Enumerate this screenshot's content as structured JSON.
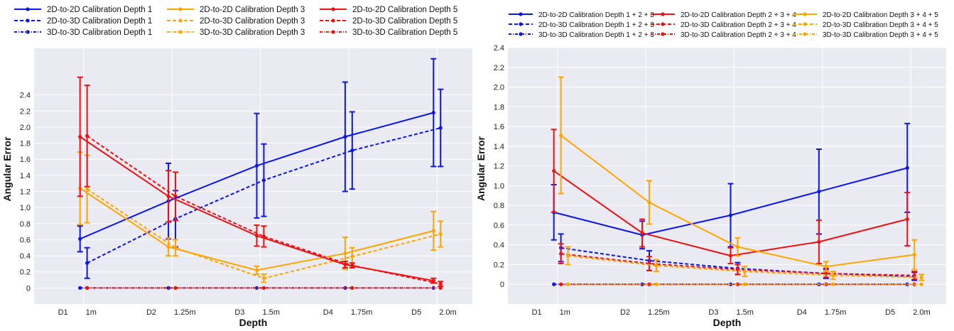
{
  "colors": {
    "blue": "#0b16ee",
    "orange": "#ffa500",
    "red": "#ee1111",
    "plot_bg": "#eaeaf2",
    "grid": "#ffffff"
  },
  "chart_data": [
    {
      "type": "line",
      "xlabel": "Depth",
      "ylabel": "Angular Error",
      "x": [
        1,
        1.25,
        1.5,
        1.75,
        2.0
      ],
      "x_tick_labels": [
        "1m",
        "1.25m",
        "1.5m",
        "1.75m",
        "2.0m"
      ],
      "depth_markers": [
        "D1",
        "D2",
        "D3",
        "D4",
        "D5"
      ],
      "y_tick_labels": [
        "0",
        "0.2",
        "0.4",
        "0.6",
        "0.8",
        "1.0",
        "1.2",
        "1.4",
        "1.6",
        "1.8",
        "2.0",
        "2.2",
        "2.4"
      ],
      "xlim": [
        0.86,
        2.1
      ],
      "ylim": [
        -0.2,
        2.98
      ],
      "grid": true,
      "legend_position": "top",
      "series": [
        {
          "name": "2D-to-2D Calibration Depth 1",
          "color": "blue",
          "dash": "solid",
          "x": [
            0.99,
            1.24,
            1.49,
            1.74,
            1.99
          ],
          "values": [
            0.61,
            1.08,
            1.52,
            1.88,
            2.18
          ],
          "err": [
            0.16,
            0.47,
            0.65,
            0.68,
            0.67
          ]
        },
        {
          "name": "2D-to-3D Calibration Depth 1",
          "color": "blue",
          "dash": "dashed",
          "x": [
            1.01,
            1.26,
            1.51,
            1.76,
            2.01
          ],
          "values": [
            0.31,
            0.86,
            1.34,
            1.71,
            1.99
          ],
          "err": [
            0.19,
            0.35,
            0.45,
            0.48,
            0.48
          ]
        },
        {
          "name": "3D-to-3D Calibration Depth 1",
          "color": "blue",
          "dash": "dashdot",
          "x": [
            0.99,
            1.24,
            1.49,
            1.74,
            1.99
          ],
          "values": [
            0,
            0,
            0,
            0,
            0
          ],
          "err": [
            0,
            0,
            0,
            0,
            0
          ]
        },
        {
          "name": "2D-to-2D Calibration Depth 3",
          "color": "orange",
          "dash": "solid",
          "x": [
            0.99,
            1.24,
            1.49,
            1.74,
            1.99
          ],
          "values": [
            1.24,
            0.51,
            0.22,
            0.43,
            0.71
          ],
          "err": [
            0.45,
            0.11,
            0.05,
            0.2,
            0.24
          ]
        },
        {
          "name": "2D-to-3D Calibration Depth 3",
          "color": "orange",
          "dash": "dashed",
          "x": [
            1.01,
            1.26,
            1.51,
            1.76,
            2.01
          ],
          "values": [
            1.23,
            0.5,
            0.12,
            0.39,
            0.67
          ],
          "err": [
            0.42,
            0.1,
            0.05,
            0.11,
            0.16
          ]
        },
        {
          "name": "3D-to-3D Calibration Depth 3",
          "color": "orange",
          "dash": "dashdot",
          "x": [
            1.01,
            1.26,
            1.51,
            1.76,
            2.01
          ],
          "values": [
            0,
            0,
            0,
            0,
            0
          ],
          "err": [
            0,
            0,
            0,
            0,
            0
          ]
        },
        {
          "name": "2D-to-2D Calibration Depth 5",
          "color": "red",
          "dash": "solid",
          "x": [
            0.99,
            1.24,
            1.49,
            1.74,
            1.99
          ],
          "values": [
            1.88,
            1.14,
            0.65,
            0.29,
            0.09
          ],
          "err": [
            0.74,
            0.32,
            0.13,
            0.04,
            0.03
          ]
        },
        {
          "name": "2D-to-3D Calibration Depth 5",
          "color": "red",
          "dash": "dashed",
          "x": [
            1.01,
            1.26,
            1.51,
            1.76,
            2.01
          ],
          "values": [
            1.89,
            1.14,
            0.64,
            0.28,
            0.05
          ],
          "err": [
            0.63,
            0.3,
            0.13,
            0.03,
            0.03
          ]
        },
        {
          "name": "3D-to-3D Calibration Depth 5",
          "color": "red",
          "dash": "dashdot",
          "x": [
            1.01,
            1.26,
            1.51,
            1.76,
            2.01
          ],
          "values": [
            0,
            0,
            0,
            0,
            0
          ],
          "err": [
            0,
            0,
            0,
            0,
            0
          ]
        }
      ]
    },
    {
      "type": "line",
      "xlabel": "Depth",
      "ylabel": "Angular Error",
      "x": [
        1,
        1.25,
        1.5,
        1.75,
        2.0
      ],
      "x_tick_labels": [
        "1m",
        "1.25m",
        "1.5m",
        "1.75m",
        "2.0m"
      ],
      "depth_markers": [
        "D1",
        "D2",
        "D3",
        "D4",
        "D5"
      ],
      "y_tick_labels": [
        "0",
        "0.2",
        "0.4",
        "0.6",
        "0.8",
        "1.0",
        "1.2",
        "1.4",
        "1.6",
        "1.8",
        "2.0",
        "2.2",
        "2.4"
      ],
      "xlim": [
        0.86,
        2.1
      ],
      "ylim": [
        -0.2,
        2.4
      ],
      "grid": true,
      "legend_position": "top",
      "series": [
        {
          "name": "2D-to-2D Calibration Depth 1 + 2 + 3",
          "color": "blue",
          "dash": "solid",
          "x": [
            0.99,
            1.24,
            1.49,
            1.74,
            1.99
          ],
          "values": [
            0.73,
            0.5,
            0.7,
            0.94,
            1.18
          ],
          "err": [
            0.28,
            0.14,
            0.32,
            0.43,
            0.45
          ]
        },
        {
          "name": "2D-to-3D Calibration Depth 1 + 2 + 3",
          "color": "blue",
          "dash": "dashed",
          "x": [
            1.01,
            1.26,
            1.51,
            1.76,
            2.01
          ],
          "values": [
            0.37,
            0.24,
            0.16,
            0.11,
            0.08
          ],
          "err": [
            0.14,
            0.1,
            0.06,
            0.05,
            0.04
          ]
        },
        {
          "name": "3D-to-3D Calibration Depth 1 + 2 + 3",
          "color": "blue",
          "dash": "dashdot",
          "x": [
            0.99,
            1.24,
            1.49,
            1.74,
            1.99
          ],
          "values": [
            0,
            0,
            0,
            0,
            0
          ],
          "err": [
            0,
            0,
            0,
            0,
            0
          ]
        },
        {
          "name": "2D-to-2D Calibration Depth 2 + 3 + 4",
          "color": "red",
          "dash": "solid",
          "x": [
            0.99,
            1.24,
            1.49,
            1.74,
            1.99
          ],
          "values": [
            1.15,
            0.52,
            0.29,
            0.43,
            0.66
          ],
          "err": [
            0.42,
            0.14,
            0.08,
            0.22,
            0.27
          ]
        },
        {
          "name": "2D-to-3D Calibration Depth 2 + 3 + 4",
          "color": "red",
          "dash": "dashed",
          "x": [
            1.01,
            1.26,
            1.51,
            1.76,
            2.01
          ],
          "values": [
            0.31,
            0.21,
            0.15,
            0.11,
            0.09
          ],
          "err": [
            0.1,
            0.07,
            0.05,
            0.04,
            0.04
          ]
        },
        {
          "name": "3D-to-3D Calibration Depth 2 + 3 + 4",
          "color": "red",
          "dash": "dashdot",
          "x": [
            1.01,
            1.26,
            1.51,
            1.76,
            2.01
          ],
          "values": [
            0,
            0,
            0,
            0,
            0
          ],
          "err": [
            0,
            0,
            0,
            0,
            0
          ]
        },
        {
          "name": "2D-to-2D Calibration Depth 3 + 4 + 5",
          "color": "orange",
          "dash": "solid",
          "x": [
            1.01,
            1.26,
            1.51,
            1.76,
            2.01
          ],
          "values": [
            1.51,
            0.83,
            0.38,
            0.18,
            0.3
          ],
          "err": [
            0.59,
            0.22,
            0.09,
            0.05,
            0.15
          ]
        },
        {
          "name": "2D-to-3D Calibration Depth 3 + 4 + 5",
          "color": "orange",
          "dash": "dashed",
          "x": [
            1.03,
            1.28,
            1.53,
            1.78,
            2.03
          ],
          "values": [
            0.29,
            0.19,
            0.13,
            0.09,
            0.07
          ],
          "err": [
            0.09,
            0.06,
            0.05,
            0.04,
            0.03
          ]
        },
        {
          "name": "3D-to-3D Calibration Depth 3 + 4 + 5",
          "color": "orange",
          "dash": "dashdot",
          "x": [
            1.03,
            1.28,
            1.53,
            1.78,
            2.03
          ],
          "values": [
            0,
            0,
            0,
            0,
            0
          ],
          "err": [
            0,
            0,
            0,
            0,
            0
          ]
        }
      ]
    }
  ]
}
